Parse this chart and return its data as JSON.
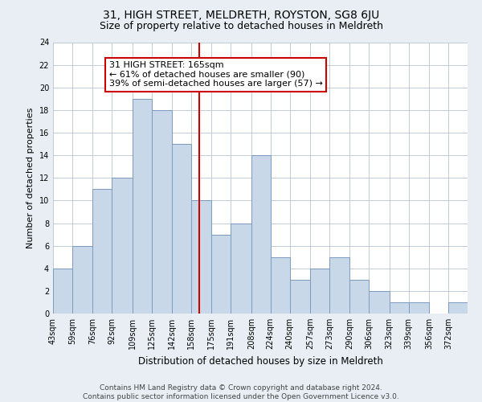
{
  "title": "31, HIGH STREET, MELDRETH, ROYSTON, SG8 6JU",
  "subtitle": "Size of property relative to detached houses in Meldreth",
  "xlabel": "Distribution of detached houses by size in Meldreth",
  "ylabel": "Number of detached properties",
  "footnote1": "Contains HM Land Registry data © Crown copyright and database right 2024.",
  "footnote2": "Contains public sector information licensed under the Open Government Licence v3.0.",
  "bin_labels": [
    "43sqm",
    "59sqm",
    "76sqm",
    "92sqm",
    "109sqm",
    "125sqm",
    "142sqm",
    "158sqm",
    "175sqm",
    "191sqm",
    "208sqm",
    "224sqm",
    "240sqm",
    "257sqm",
    "273sqm",
    "290sqm",
    "306sqm",
    "323sqm",
    "339sqm",
    "356sqm",
    "372sqm"
  ],
  "bin_edges": [
    43,
    59,
    76,
    92,
    109,
    125,
    142,
    158,
    175,
    191,
    208,
    224,
    240,
    257,
    273,
    290,
    306,
    323,
    339,
    356,
    372,
    388
  ],
  "counts": [
    4,
    6,
    11,
    12,
    19,
    18,
    15,
    10,
    7,
    8,
    14,
    5,
    3,
    4,
    5,
    3,
    2,
    1,
    1,
    0,
    1
  ],
  "bar_color": "#c8d8e8",
  "bar_edgecolor": "#7a9bbf",
  "property_size": 165,
  "vline_color": "#cc0000",
  "annotation_text": "31 HIGH STREET: 165sqm\n← 61% of detached houses are smaller (90)\n39% of semi-detached houses are larger (57) →",
  "annotation_box_edgecolor": "#cc0000",
  "ylim": [
    0,
    24
  ],
  "yticks": [
    0,
    2,
    4,
    6,
    8,
    10,
    12,
    14,
    16,
    18,
    20,
    22,
    24
  ],
  "bg_color": "#e8eef4",
  "plot_bg_color": "#ffffff",
  "grid_color": "#c0ccd8",
  "title_fontsize": 10,
  "subtitle_fontsize": 9,
  "xlabel_fontsize": 8.5,
  "ylabel_fontsize": 8,
  "tick_fontsize": 7,
  "annotation_fontsize": 8,
  "footnote_fontsize": 6.5
}
